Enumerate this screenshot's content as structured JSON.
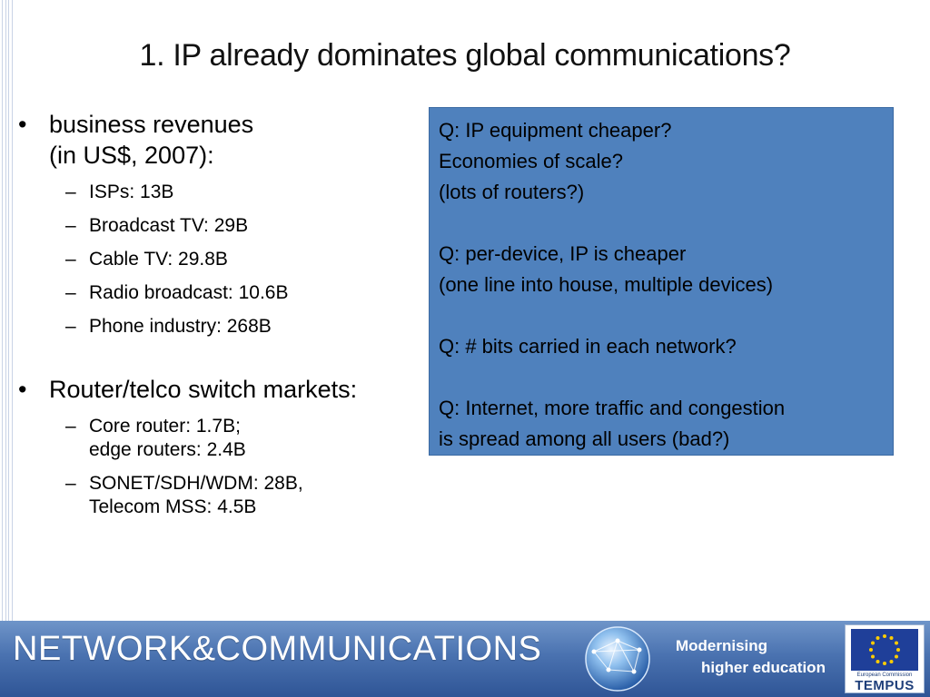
{
  "slide": {
    "title": "1. IP already dominates global communications?"
  },
  "bullets": [
    {
      "lines": [
        "business revenues",
        "(in US$, 2007):"
      ],
      "subitems": [
        [
          "ISPs: 13B"
        ],
        [
          "Broadcast TV: 29B"
        ],
        [
          "Cable TV: 29.8B"
        ],
        [
          "Radio broadcast: 10.6B"
        ],
        [
          "Phone industry: 268B"
        ]
      ]
    },
    {
      "lines": [
        "Router/telco switch markets:"
      ],
      "subitems": [
        [
          "Core router: 1.7B;",
          "edge routers: 2.4B"
        ],
        [
          "SONET/SDH/WDM: 28B,",
          "Telecom MSS: 4.5B"
        ]
      ]
    }
  ],
  "bullet_glyph": "•",
  "dash_glyph": "–",
  "question_box": {
    "paragraphs": [
      [
        "Q: IP equipment cheaper?",
        "Economies of scale?",
        "(lots of routers?)"
      ],
      [
        "Q: per-device, IP is cheaper",
        "(one line into house, multiple devices)"
      ],
      [
        "Q: # bits carried in each network?"
      ],
      [
        "Q: Internet, more traffic and congestion",
        "is spread among all users (bad?)"
      ]
    ],
    "background": "#4f81bd"
  },
  "footer": {
    "brand": "NETWORK&COMMUNICATIONS",
    "tagline_line1": "Modernising",
    "tagline_line2": "higher education",
    "eu_caption": "European Commission",
    "eu_program": "TEMPUS"
  }
}
